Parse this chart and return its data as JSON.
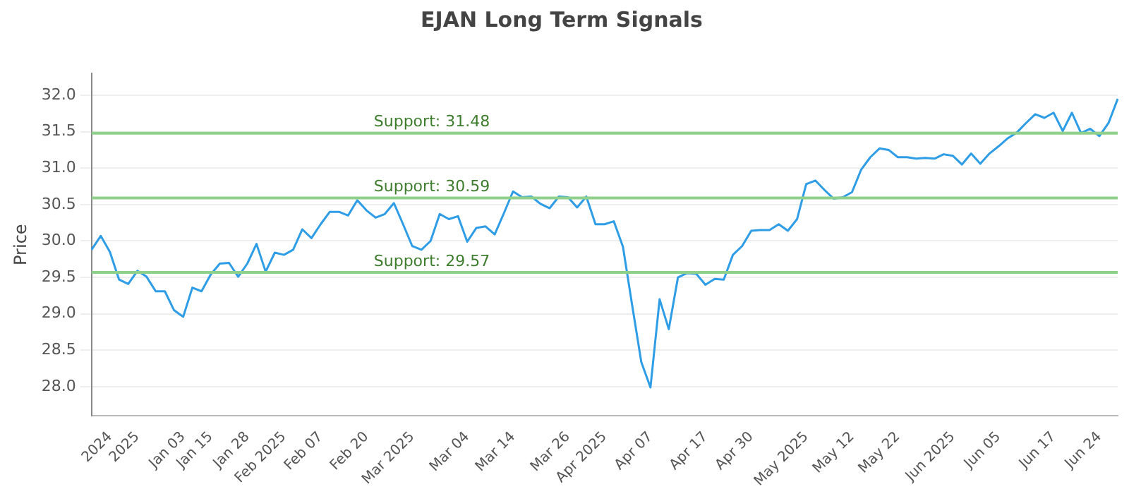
{
  "chart_data": {
    "type": "line",
    "title": "EJAN Long Term Signals",
    "ylabel": "Price",
    "categories": [
      null,
      null,
      "2024",
      null,
      null,
      "2025",
      null,
      null,
      null,
      null,
      "Jan 03",
      null,
      null,
      "Jan 15",
      null,
      null,
      null,
      "Jan 28",
      null,
      null,
      null,
      "Feb 2025",
      null,
      null,
      null,
      "Feb 07",
      null,
      null,
      null,
      null,
      "Feb 20",
      null,
      null,
      null,
      null,
      "Mar 2025",
      null,
      null,
      null,
      null,
      null,
      "Mar 04",
      null,
      null,
      null,
      null,
      "Mar 14",
      null,
      null,
      null,
      null,
      null,
      "Mar 26",
      null,
      null,
      null,
      "Apr 2025",
      null,
      null,
      null,
      null,
      "Apr 07",
      null,
      null,
      null,
      null,
      null,
      "Apr 17",
      null,
      null,
      null,
      null,
      "Apr 30",
      null,
      null,
      null,
      null,
      null,
      "May 2025",
      null,
      null,
      null,
      null,
      "May 12",
      null,
      null,
      null,
      null,
      "May 22",
      null,
      null,
      null,
      null,
      null,
      "Jun 2025",
      null,
      null,
      null,
      null,
      "Jun 05",
      null,
      null,
      null,
      null,
      null,
      "Jun 17",
      null,
      null,
      null,
      null,
      "Jun 24",
      null,
      null
    ],
    "series": [
      {
        "color": "#2e9de6",
        "values": [
          29.88,
          30.07,
          29.85,
          29.47,
          29.41,
          29.59,
          29.51,
          29.31,
          29.31,
          29.05,
          28.96,
          29.36,
          29.31,
          29.54,
          29.69,
          29.7,
          29.51,
          29.69,
          29.96,
          29.58,
          29.84,
          29.81,
          29.88,
          30.16,
          30.04,
          30.23,
          30.4,
          30.4,
          30.35,
          30.56,
          30.42,
          30.32,
          30.37,
          30.52,
          30.23,
          29.93,
          29.88,
          30.0,
          30.37,
          30.3,
          30.34,
          29.99,
          30.18,
          30.2,
          30.09,
          30.38,
          30.68,
          30.6,
          30.61,
          30.51,
          30.45,
          30.61,
          30.6,
          30.46,
          30.61,
          30.23,
          30.23,
          30.27,
          29.92,
          29.12,
          28.34,
          27.99,
          29.2,
          28.79,
          29.5,
          29.56,
          29.55,
          29.4,
          29.48,
          29.47,
          29.81,
          29.93,
          30.14,
          30.15,
          30.15,
          30.23,
          30.14,
          30.3,
          30.78,
          30.83,
          30.7,
          30.58,
          30.6,
          30.67,
          30.98,
          31.15,
          31.27,
          31.25,
          31.15,
          31.15,
          31.13,
          31.14,
          31.13,
          31.19,
          31.17,
          31.05,
          31.2,
          31.06,
          31.2,
          31.3,
          31.41,
          31.49,
          31.62,
          31.74,
          31.69,
          31.76,
          31.51,
          31.76,
          31.48,
          31.54,
          31.44,
          31.62,
          31.95
        ]
      }
    ],
    "ylim": [
      27.6,
      32.3
    ],
    "yticks": [
      {
        "value": 28,
        "label": "28.0"
      },
      {
        "value": 28.5,
        "label": "28.5"
      },
      {
        "value": 29,
        "label": "29.0"
      },
      {
        "value": 29.5,
        "label": "29.5"
      },
      {
        "value": 30,
        "label": "30.0"
      },
      {
        "value": 30.5,
        "label": "30.5"
      },
      {
        "value": 31,
        "label": "31.0"
      },
      {
        "value": 31.5,
        "label": "31.5"
      },
      {
        "value": 32,
        "label": "32.0"
      }
    ],
    "grid": "y",
    "legend": false,
    "marker": "none",
    "line_style": "solid",
    "ref_lines": [
      {
        "axis": "y",
        "value": 31.48,
        "label": "Support: 31.48",
        "color": "#8fd18a"
      },
      {
        "axis": "y",
        "value": 30.59,
        "label": "Support: 30.59",
        "color": "#8fd18a"
      },
      {
        "axis": "y",
        "value": 29.57,
        "label": "Support: 29.57",
        "color": "#8fd18a"
      }
    ]
  }
}
